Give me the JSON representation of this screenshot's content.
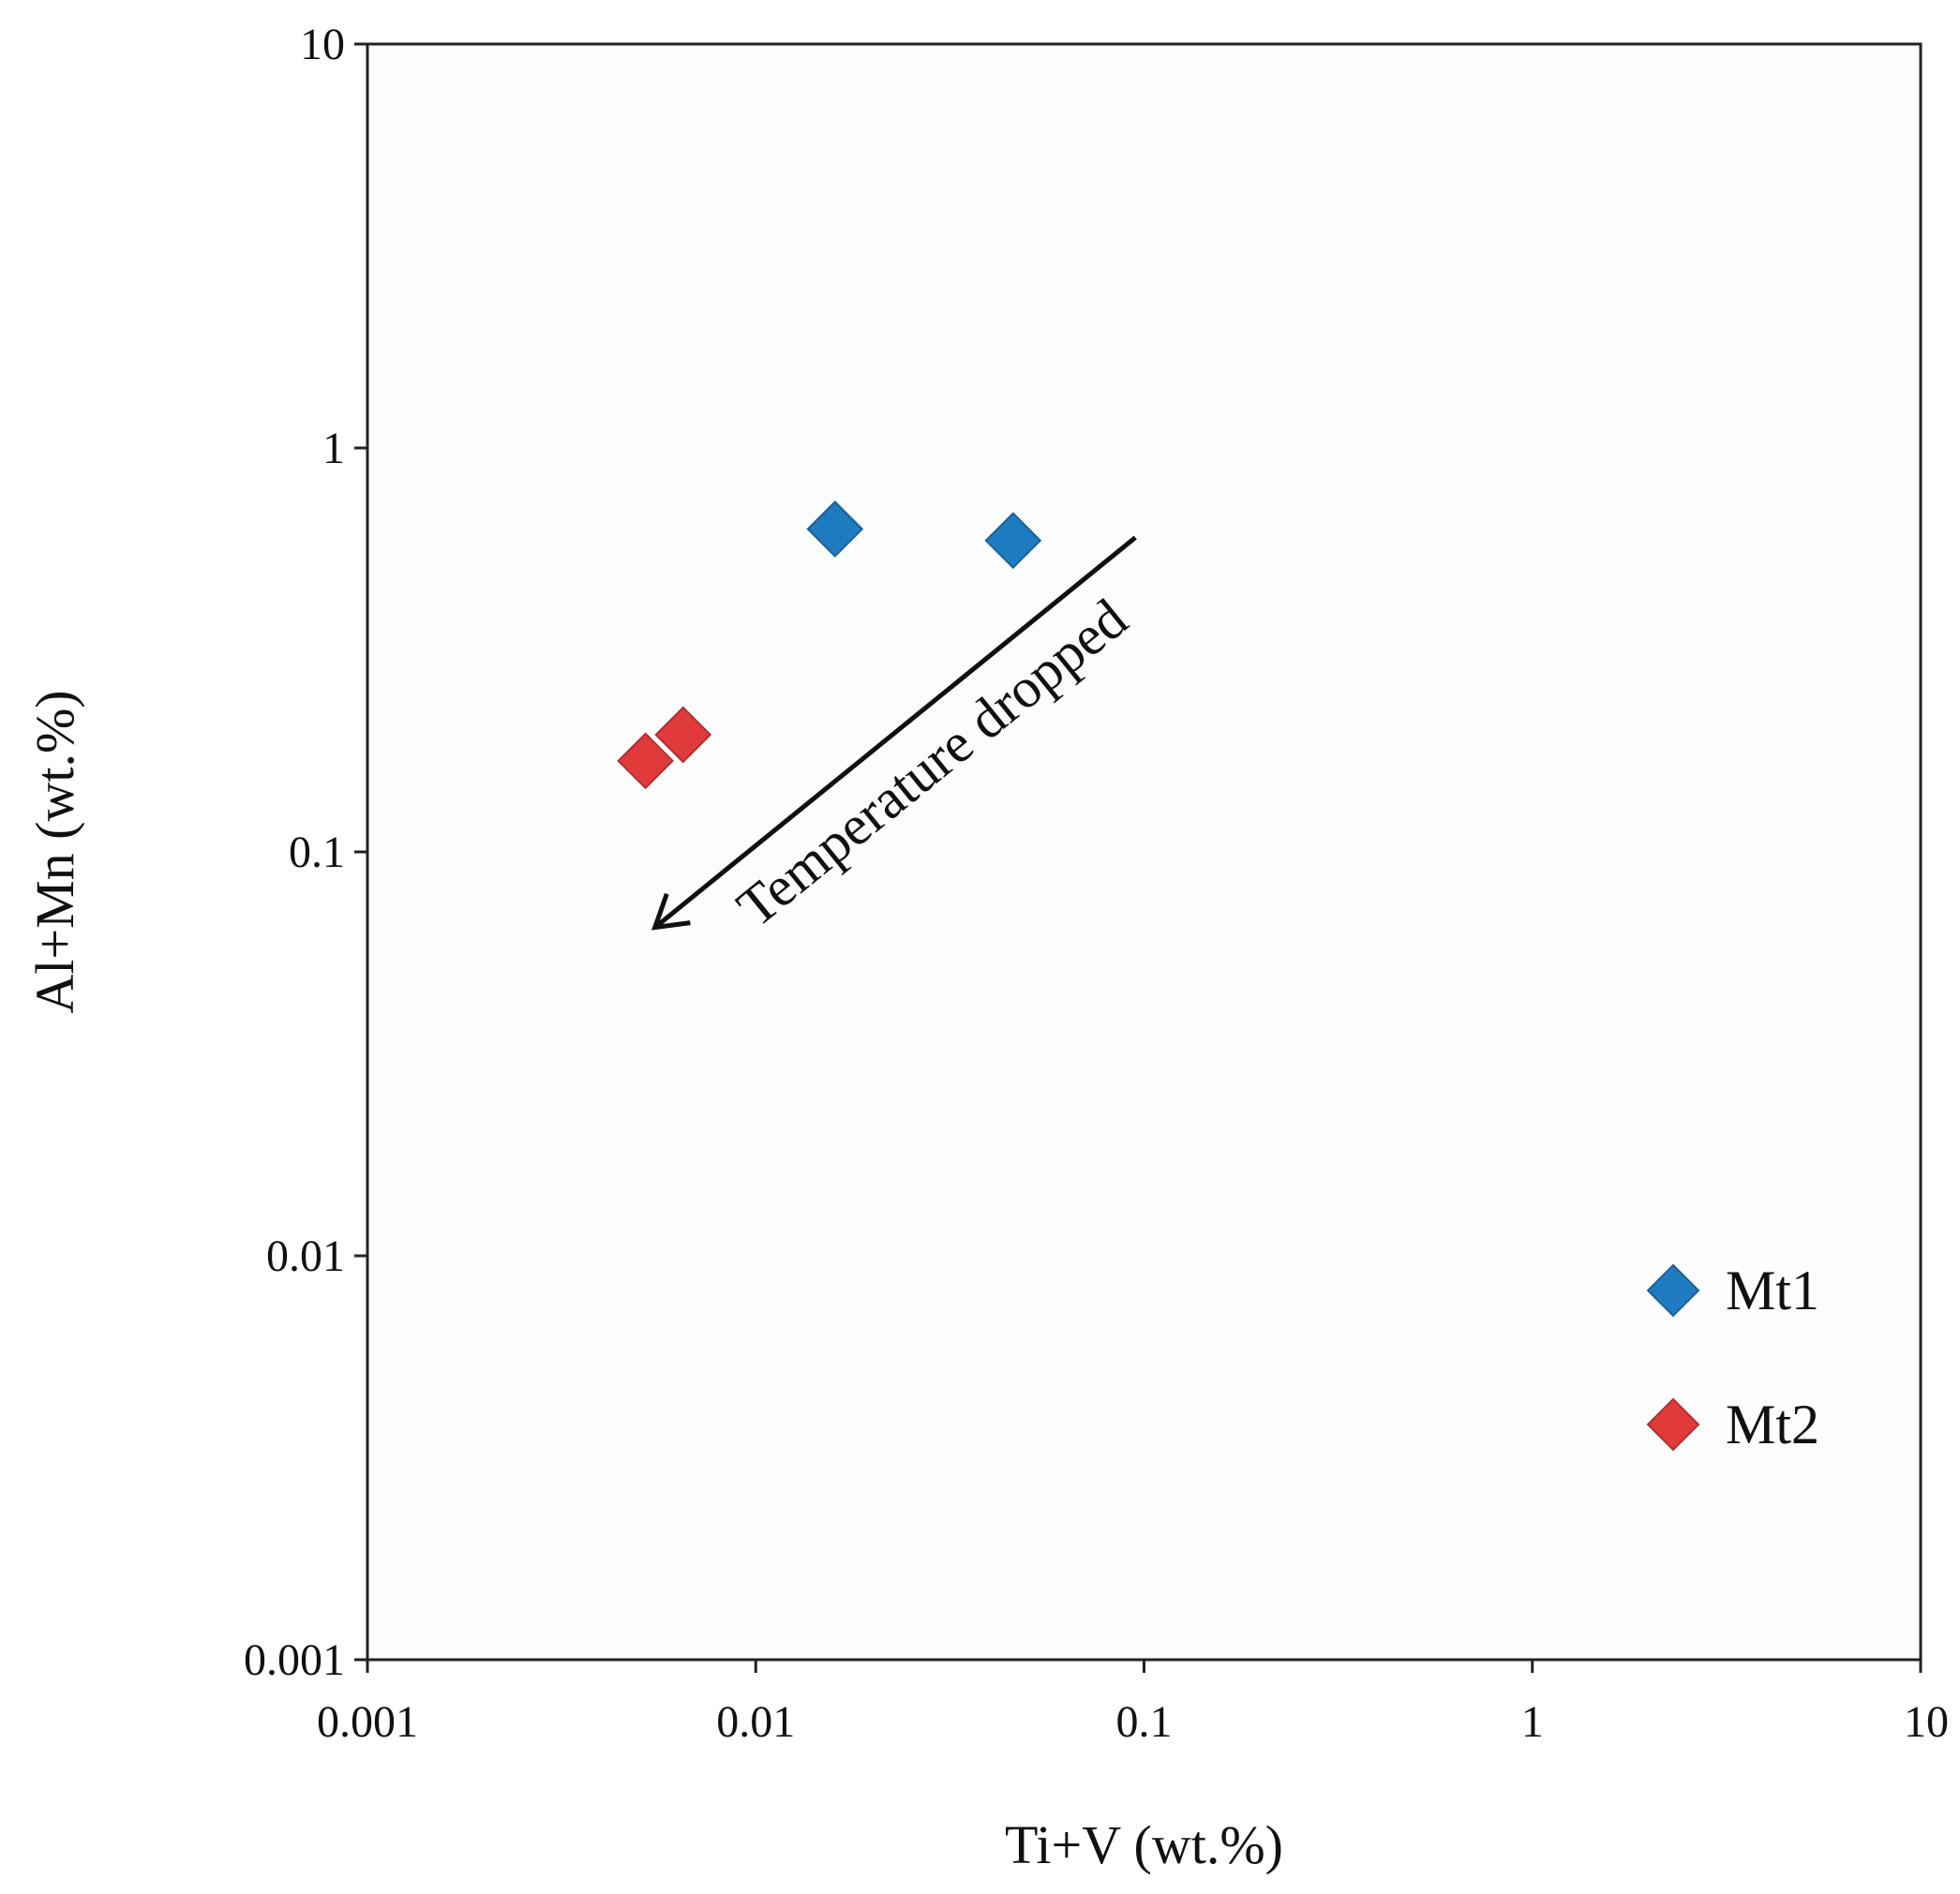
{
  "chart_data": {
    "type": "scatter",
    "title": "",
    "xlabel": "Ti+V (wt.%)",
    "ylabel": "Al+Mn (wt.%)",
    "xscale": "log",
    "yscale": "log",
    "xlim": [
      0.001,
      10
    ],
    "ylim": [
      0.001,
      10
    ],
    "x_ticks": [
      0.001,
      0.01,
      0.1,
      1,
      10
    ],
    "x_tick_labels": [
      "0.001",
      "0.01",
      "0.1",
      "1",
      "10"
    ],
    "y_ticks": [
      0.001,
      0.01,
      0.1,
      1,
      10
    ],
    "y_tick_labels": [
      "0.001",
      "0.01",
      "0.1",
      "1",
      "10"
    ],
    "grid": false,
    "legend_position": "bottom-right",
    "series": [
      {
        "name": "Mt1",
        "marker": "diamond",
        "color": "#1f7bc0",
        "points": [
          {
            "x": 0.016,
            "y": 0.63
          },
          {
            "x": 0.046,
            "y": 0.59
          }
        ]
      },
      {
        "name": "Mt2",
        "marker": "diamond",
        "color": "#e03a3a",
        "points": [
          {
            "x": 0.0052,
            "y": 0.168
          },
          {
            "x": 0.0065,
            "y": 0.195
          }
        ]
      }
    ],
    "annotations": [
      {
        "text": "Temperature dropped",
        "arrow_from": {
          "x": 0.095,
          "y": 0.6
        },
        "arrow_to": {
          "x": 0.0055,
          "y": 0.065
        }
      }
    ]
  }
}
